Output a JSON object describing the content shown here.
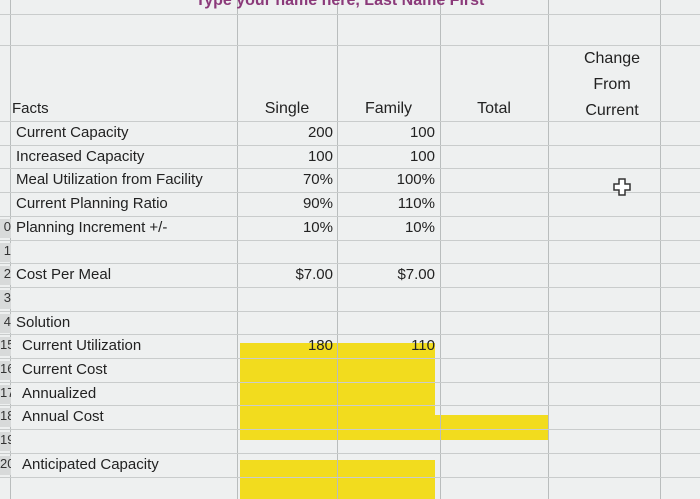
{
  "header": {
    "title": "Type your name here, Last Name First"
  },
  "columns": {
    "facts": "Facts",
    "single": "Single",
    "family": "Family",
    "total": "Total",
    "change": [
      "Change",
      "From",
      "Current"
    ]
  },
  "rows": [
    {
      "label": "Current Capacity",
      "single": "200",
      "family": "100"
    },
    {
      "label": "Increased Capacity",
      "single": "100",
      "family": "100"
    },
    {
      "label": "Meal Utilization from Facility",
      "single": "70%",
      "family": "100%"
    },
    {
      "label": "Current Planning Ratio",
      "single": "90%",
      "family": "110%"
    },
    {
      "num": "0",
      "label": "Planning Increment +/-",
      "single": "10%",
      "family": "10%"
    },
    {
      "num": "1"
    },
    {
      "num": "2",
      "label": "Cost Per Meal",
      "single": "$7.00",
      "family": "$7.00"
    },
    {
      "num": "3"
    },
    {
      "num": "4",
      "label": "Solution"
    },
    {
      "num": "15",
      "label": "Current Utilization",
      "single": "180",
      "family": "110"
    },
    {
      "num": "16",
      "label": "Current Cost"
    },
    {
      "num": "17",
      "label": "Annualized"
    },
    {
      "num": "18",
      "label": "Annual Cost"
    },
    {
      "num": "19"
    },
    {
      "num": "20",
      "label": "Anticipated Capacity"
    }
  ]
}
